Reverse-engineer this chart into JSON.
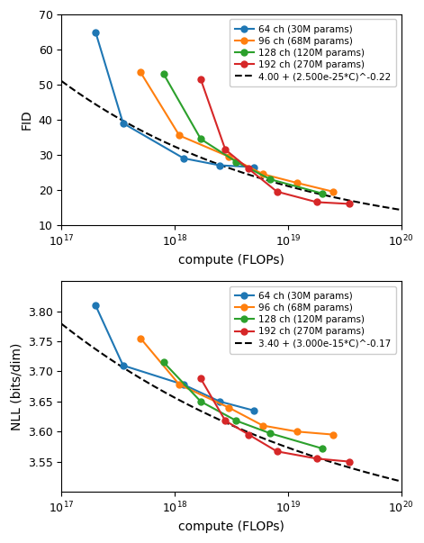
{
  "fig_width": 4.71,
  "fig_height": 6.03,
  "dpi": 100,
  "fid": {
    "xlabel": "compute (FLOPs)",
    "ylabel": "FID",
    "xlim": [
      1e+17,
      1e+20
    ],
    "ylim": [
      10,
      70
    ],
    "yticks": [
      10,
      20,
      30,
      40,
      50,
      60,
      70
    ],
    "series": [
      {
        "label": "64 ch (30M params)",
        "color": "#1f77b4",
        "x": [
          2e+17,
          3.5e+17,
          1.2e+18,
          2.5e+18,
          5e+18
        ],
        "y": [
          65.0,
          39.0,
          29.0,
          27.0,
          26.5
        ]
      },
      {
        "label": "96 ch (68M params)",
        "color": "#ff7f0e",
        "x": [
          5e+17,
          1.1e+18,
          3e+18,
          6e+18,
          1.2e+19,
          2.5e+19
        ],
        "y": [
          53.5,
          35.5,
          29.5,
          24.5,
          22.0,
          19.5
        ]
      },
      {
        "label": "128 ch (120M params)",
        "color": "#2ca02c",
        "x": [
          8e+17,
          1.7e+18,
          3.5e+18,
          7e+18,
          2e+19
        ],
        "y": [
          53.0,
          34.5,
          28.0,
          23.0,
          19.0
        ]
      },
      {
        "label": "192 ch (270M params)",
        "color": "#d62728",
        "x": [
          1.7e+18,
          2.8e+18,
          4.5e+18,
          8e+18,
          1.8e+19,
          3.5e+19
        ],
        "y": [
          51.5,
          31.5,
          26.0,
          19.5,
          16.5,
          16.0
        ]
      }
    ],
    "fit_label": "4.00 + (2.500e-25*C)^-0.22",
    "fit_a": 4.0,
    "fit_b": 2.5e-25,
    "fit_c": -0.22
  },
  "nll": {
    "xlabel": "compute (FLOPs)",
    "ylabel": "NLL (bits/dim)",
    "xlim": [
      1e+17,
      1e+20
    ],
    "ylim": [
      3.5,
      3.85
    ],
    "yticks": [
      3.55,
      3.6,
      3.65,
      3.7,
      3.75,
      3.8
    ],
    "series": [
      {
        "label": "64 ch (30M params)",
        "color": "#1f77b4",
        "x": [
          2e+17,
          3.5e+17,
          1.2e+18,
          2.5e+18,
          5e+18
        ],
        "y": [
          3.81,
          3.71,
          3.678,
          3.65,
          3.635
        ]
      },
      {
        "label": "96 ch (68M params)",
        "color": "#ff7f0e",
        "x": [
          5e+17,
          1.1e+18,
          3e+18,
          6e+18,
          1.2e+19,
          2.5e+19
        ],
        "y": [
          3.755,
          3.678,
          3.64,
          3.61,
          3.6,
          3.595
        ]
      },
      {
        "label": "128 ch (120M params)",
        "color": "#2ca02c",
        "x": [
          8e+17,
          1.7e+18,
          3.5e+18,
          7e+18,
          2e+19
        ],
        "y": [
          3.715,
          3.65,
          3.618,
          3.597,
          3.572
        ]
      },
      {
        "label": "192 ch (270M params)",
        "color": "#d62728",
        "x": [
          1.7e+18,
          2.8e+18,
          4.5e+18,
          8e+18,
          1.8e+19,
          3.5e+19
        ],
        "y": [
          3.688,
          3.618,
          3.595,
          3.567,
          3.555,
          3.55
        ]
      }
    ],
    "fit_label": "3.40 + (3.000e-15*C)^-0.17",
    "fit_a": 3.4,
    "fit_b": 3e-15,
    "fit_c": -0.17
  }
}
